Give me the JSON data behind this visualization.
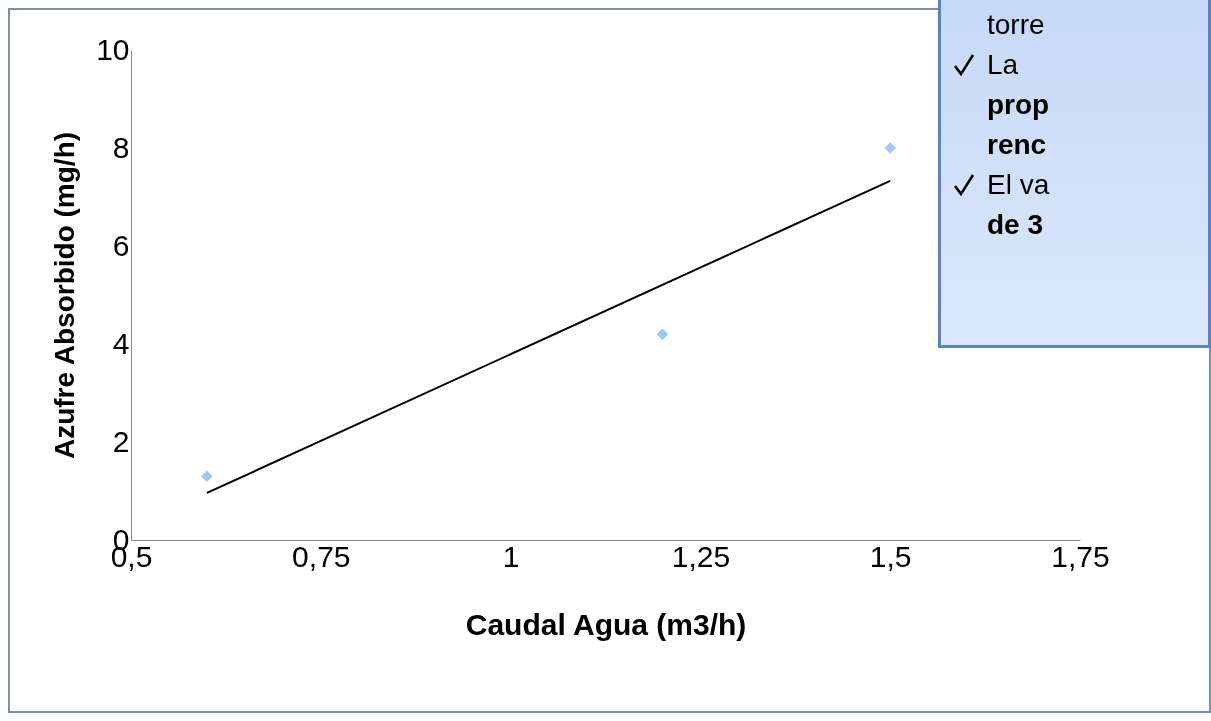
{
  "chart_data": {
    "type": "scatter",
    "xlabel": "Caudal Agua (m3/h)",
    "ylabel": "Azufre Absorbido (mg/h)",
    "xlim": [
      0.5,
      1.75
    ],
    "ylim": [
      0,
      10
    ],
    "xticks": [
      {
        "value": 0.5,
        "label": "0,5"
      },
      {
        "value": 0.75,
        "label": "0,75"
      },
      1,
      {
        "value": 1.25,
        "label": "1,25"
      },
      {
        "value": 1.5,
        "label": "1,5"
      },
      {
        "value": 1.75,
        "label": "1,75"
      }
    ],
    "yticks": [
      0,
      2,
      4,
      6,
      8,
      10
    ],
    "series": [
      {
        "color": "#9dc8f5",
        "x": [
          0.6,
          1.2,
          1.5
        ],
        "values": [
          1.3,
          4.2,
          8.0
        ],
        "marker": "diamond"
      },
      {
        "type": "line",
        "color": "#000000",
        "x": [
          0.6,
          1.5
        ],
        "values": [
          0.96,
          7.33
        ],
        "marker": "none"
      }
    ],
    "grid": false,
    "annotations": [
      "torre",
      "La",
      "prop",
      "renc",
      "El va",
      "de 3"
    ]
  }
}
